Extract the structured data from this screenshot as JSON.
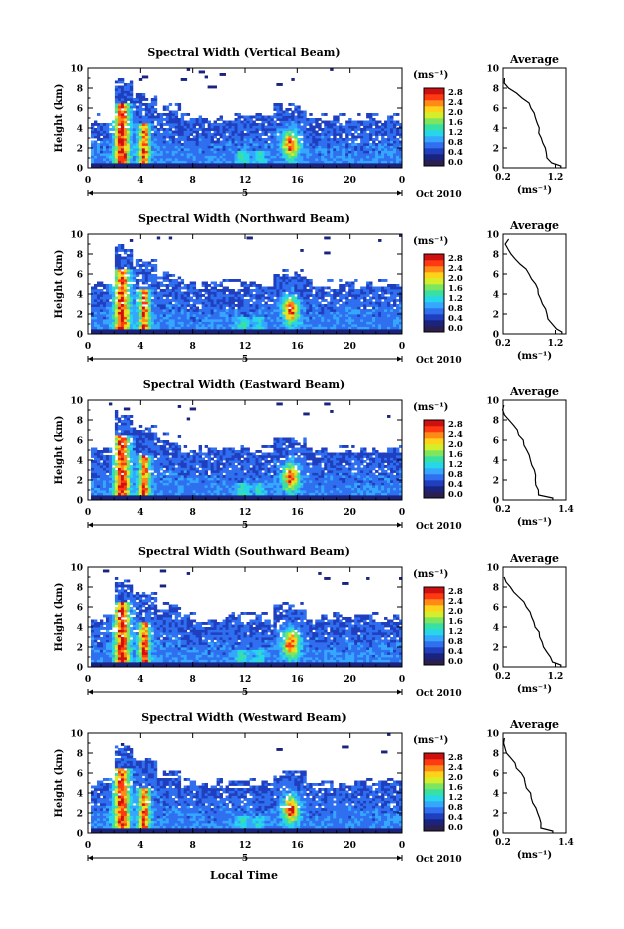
{
  "xlabel": "Local Time",
  "date_label": "Oct 2010",
  "day_label": "5",
  "units_label": "(ms⁻¹)",
  "colorbar_ticks": [
    "2.8",
    "2.4",
    "2.0",
    "1.6",
    "1.2",
    "0.8",
    "0.4",
    "0.0"
  ],
  "colors": {
    "colormap": [
      "#2a1f4f",
      "#1a237e",
      "#1f3fbf",
      "#2f6ff0",
      "#35a7ff",
      "#27d6e8",
      "#38e0a4",
      "#7ee55e",
      "#d4ee2c",
      "#ffd21a",
      "#ff8a18",
      "#ff3a12",
      "#cf1010"
    ],
    "line": "#000000"
  },
  "chart_data": [
    {
      "type": "heatmap",
      "title": "Spectral Width (Vertical Beam)",
      "ylabel": "Height (km)",
      "x_ticks": [
        "0",
        "4",
        "8",
        "12",
        "16",
        "20",
        "0"
      ],
      "y_ticks": [
        "0",
        "2",
        "4",
        "6",
        "8",
        "10"
      ],
      "xlim": [
        0,
        24
      ],
      "ylim": [
        0,
        10
      ],
      "colorbar_range": [
        0,
        2.8
      ],
      "profile": {
        "title": "Average",
        "xlabel": "(ms⁻¹)",
        "x_ticks": [
          "0.2",
          "1.2"
        ],
        "xlim": [
          0.2,
          1.4
        ],
        "y_ticks": [
          "0",
          "2",
          "4",
          "6",
          "8",
          "10"
        ],
        "height": [
          0.2,
          0.5,
          1,
          1.5,
          2,
          2.5,
          3,
          3.5,
          4,
          4.5,
          5,
          5.5,
          6,
          6.5,
          7,
          7.5,
          8,
          8.5,
          9
        ],
        "value": [
          1.3,
          1.12,
          1.05,
          1.02,
          0.98,
          0.95,
          0.92,
          0.9,
          0.87,
          0.84,
          0.8,
          0.78,
          0.74,
          0.68,
          0.58,
          0.45,
          0.32,
          0.24,
          0.21
        ]
      }
    },
    {
      "type": "heatmap",
      "title": "Spectral Width (Northward Beam)",
      "ylabel": "Height (km)",
      "x_ticks": [
        "0",
        "4",
        "8",
        "12",
        "16",
        "20",
        "0"
      ],
      "y_ticks": [
        "0",
        "2",
        "4",
        "6",
        "8",
        "10"
      ],
      "xlim": [
        0,
        24
      ],
      "ylim": [
        0,
        10
      ],
      "colorbar_range": [
        0,
        2.8
      ],
      "profile": {
        "title": "Average",
        "xlabel": "(ms⁻¹)",
        "x_ticks": [
          "0.2",
          "1.2"
        ],
        "xlim": [
          0.2,
          1.4
        ],
        "y_ticks": [
          "0",
          "2",
          "4",
          "6",
          "8",
          "10"
        ],
        "height": [
          0.2,
          0.5,
          1,
          1.5,
          2,
          2.5,
          3,
          3.5,
          4,
          4.5,
          5,
          5.5,
          6,
          6.5,
          7,
          7.5,
          8,
          8.5,
          9,
          9.5
        ],
        "value": [
          1.32,
          1.2,
          1.12,
          1.08,
          1.04,
          1.0,
          0.96,
          0.93,
          0.88,
          0.84,
          0.8,
          0.75,
          0.7,
          0.62,
          0.54,
          0.45,
          0.36,
          0.3,
          0.24,
          0.28
        ]
      }
    },
    {
      "type": "heatmap",
      "title": "Spectral Width (Eastward Beam)",
      "ylabel": "Height (km)",
      "x_ticks": [
        "0",
        "4",
        "8",
        "12",
        "16",
        "20",
        "0"
      ],
      "y_ticks": [
        "0",
        "2",
        "4",
        "6",
        "8",
        "10"
      ],
      "xlim": [
        0,
        24
      ],
      "ylim": [
        0,
        10
      ],
      "colorbar_range": [
        0,
        2.8
      ],
      "profile": {
        "title": "Average",
        "xlabel": "(ms⁻¹)",
        "x_ticks": [
          "0.2",
          "1.4"
        ],
        "xlim": [
          0.2,
          1.4
        ],
        "y_ticks": [
          "0",
          "2",
          "4",
          "6",
          "8",
          "10"
        ],
        "height": [
          0.2,
          0.5,
          1,
          1.5,
          2,
          2.5,
          3,
          3.5,
          4,
          4.5,
          5,
          5.5,
          6,
          6.5,
          7,
          7.5,
          8,
          8.5,
          9,
          9.5
        ],
        "value": [
          1.15,
          0.88,
          0.86,
          0.84,
          0.82,
          0.8,
          0.78,
          0.76,
          0.72,
          0.68,
          0.64,
          0.62,
          0.58,
          0.52,
          0.46,
          0.4,
          0.3,
          0.24,
          0.2,
          0.22
        ]
      }
    },
    {
      "type": "heatmap",
      "title": "Spectral Width (Southward Beam)",
      "ylabel": "Height (km)",
      "x_ticks": [
        "0",
        "4",
        "8",
        "12",
        "16",
        "20",
        "0"
      ],
      "y_ticks": [
        "0",
        "2",
        "4",
        "6",
        "8",
        "10"
      ],
      "xlim": [
        0,
        24
      ],
      "ylim": [
        0,
        10
      ],
      "colorbar_range": [
        0,
        2.8
      ],
      "profile": {
        "title": "Average",
        "xlabel": "(ms⁻¹)",
        "x_ticks": [
          "0.2",
          "1.2"
        ],
        "xlim": [
          0.2,
          1.4
        ],
        "y_ticks": [
          "0",
          "2",
          "4",
          "6",
          "8",
          "10"
        ],
        "height": [
          0.2,
          0.5,
          1,
          1.5,
          2,
          2.5,
          3,
          3.5,
          4,
          4.5,
          5,
          5.5,
          6,
          6.5,
          7,
          7.5,
          8,
          8.5,
          9
        ],
        "value": [
          1.3,
          1.15,
          1.08,
          1.04,
          1.0,
          0.96,
          0.92,
          0.88,
          0.84,
          0.8,
          0.76,
          0.72,
          0.66,
          0.58,
          0.5,
          0.4,
          0.32,
          0.25,
          0.21
        ]
      }
    },
    {
      "type": "heatmap",
      "title": "Spectral Width (Westward Beam)",
      "ylabel": "Height (km)",
      "x_ticks": [
        "0",
        "4",
        "8",
        "12",
        "16",
        "20",
        "0"
      ],
      "y_ticks": [
        "0",
        "2",
        "4",
        "6",
        "8",
        "10"
      ],
      "xlim": [
        0,
        24
      ],
      "ylim": [
        0,
        10
      ],
      "colorbar_range": [
        0,
        2.8
      ],
      "profile": {
        "title": "Average",
        "xlabel": "(ms⁻¹)",
        "x_ticks": [
          "0.2",
          "1.4"
        ],
        "xlim": [
          0.2,
          1.4
        ],
        "y_ticks": [
          "0",
          "2",
          "4",
          "6",
          "8",
          "10"
        ],
        "height": [
          0.2,
          0.5,
          1,
          1.5,
          2,
          2.5,
          3,
          3.5,
          4,
          4.5,
          5,
          5.5,
          6,
          6.5,
          7,
          7.5,
          8,
          8.5,
          9,
          9.5
        ],
        "value": [
          1.15,
          0.95,
          0.92,
          0.9,
          0.86,
          0.82,
          0.78,
          0.74,
          0.7,
          0.66,
          0.62,
          0.58,
          0.54,
          0.48,
          0.42,
          0.34,
          0.27,
          0.22,
          0.2,
          0.24
        ]
      }
    }
  ]
}
